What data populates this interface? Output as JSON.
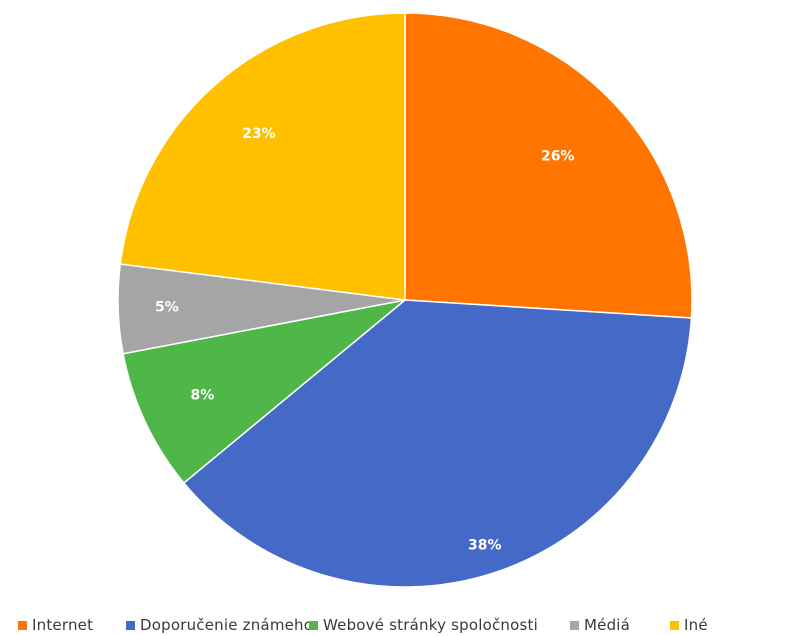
{
  "chart_data": {
    "type": "pie",
    "title": "",
    "legend_position": "bottom",
    "slices": [
      {
        "name": "Internet",
        "value": 26,
        "label": "26%",
        "color": "#FF7500"
      },
      {
        "name": "Doporučenie známeho",
        "value": 38,
        "label": "38%",
        "color": "#4469C7"
      },
      {
        "name": "Webové stránky spoločnosti",
        "value": 8,
        "label": "8%",
        "color": "#4EB748"
      },
      {
        "name": "Médiá",
        "value": 5,
        "label": "5%",
        "color": "#A5A5A5"
      },
      {
        "name": "Iné",
        "value": 23,
        "label": "23%",
        "color": "#FFC000"
      }
    ]
  }
}
